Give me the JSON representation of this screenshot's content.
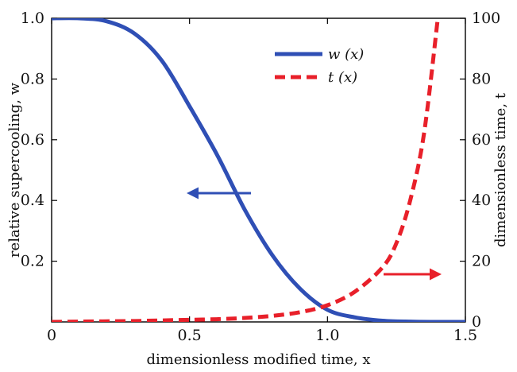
{
  "chart_data": {
    "type": "line",
    "xlabel": "dimensionless modified time, x",
    "ylabel_left": "relative supercooling, w",
    "ylabel_right": "dimensionless time, t",
    "xlim": [
      0,
      1.5
    ],
    "ylim_left": [
      0,
      1.0
    ],
    "ylim_right": [
      0,
      100
    ],
    "x_ticks": [
      "0",
      "0.5",
      "1.0",
      "1.5"
    ],
    "y_ticks_left": [
      "0.2",
      "0.4",
      "0.6",
      "0.8",
      "1.0"
    ],
    "y_ticks_right": [
      "0",
      "20",
      "40",
      "60",
      "80",
      "100"
    ],
    "grid": false,
    "legend_position": "top-center",
    "series": [
      {
        "name": "w (x)",
        "axis": "left",
        "style": "solid",
        "color": "#2f4fb5",
        "x": [
          0,
          0.1,
          0.2,
          0.3,
          0.4,
          0.5,
          0.6,
          0.7,
          0.8,
          0.9,
          1.0,
          1.1,
          1.2,
          1.3,
          1.4,
          1.5
        ],
        "y": [
          1.0,
          1.0,
          0.99,
          0.95,
          0.86,
          0.71,
          0.55,
          0.37,
          0.22,
          0.11,
          0.04,
          0.015,
          0.004,
          0.001,
          0.0,
          0.0
        ]
      },
      {
        "name": "t (x)",
        "axis": "right",
        "style": "dashed",
        "color": "#e8202a",
        "x": [
          0,
          0.1,
          0.2,
          0.3,
          0.4,
          0.5,
          0.6,
          0.7,
          0.8,
          0.9,
          1.0,
          1.1,
          1.2,
          1.25,
          1.3,
          1.35,
          1.4
        ],
        "y": [
          0,
          0.1,
          0.2,
          0.3,
          0.5,
          0.7,
          0.9,
          1.3,
          2.0,
          3.2,
          5.5,
          10,
          18,
          26,
          40,
          62,
          100
        ]
      }
    ],
    "annotations": [
      {
        "type": "arrow",
        "direction": "left",
        "color": "#2f4fb5",
        "points_to": "left axis"
      },
      {
        "type": "arrow",
        "direction": "right",
        "color": "#e8202a",
        "points_to": "right axis"
      }
    ]
  }
}
